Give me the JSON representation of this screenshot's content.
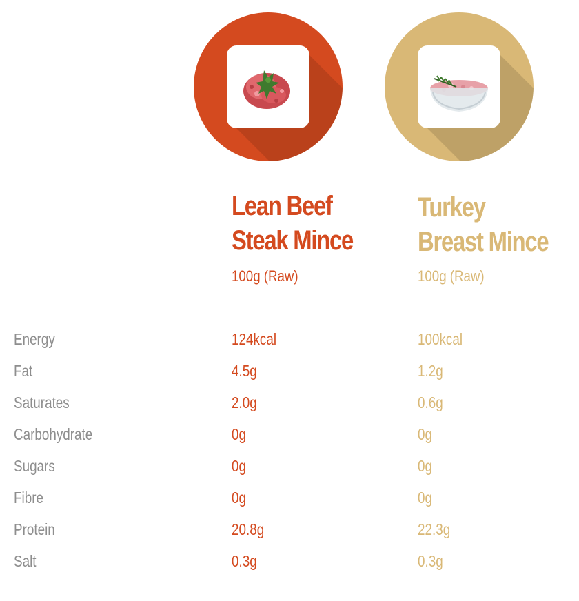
{
  "colors": {
    "beef": "#d44a1f",
    "turkey": "#d9b876",
    "label": "#8e8e8e"
  },
  "products": [
    {
      "name_line1": "Lean Beef",
      "name_line2": "Steak Mince",
      "portion": "100g (Raw)",
      "icon": "beef-mince-icon"
    },
    {
      "name_line1": "Turkey",
      "name_line2": "Breast Mince",
      "portion": "100g (Raw)",
      "icon": "turkey-mince-bowl-icon"
    }
  ],
  "nutrients": [
    {
      "label": "Energy",
      "beef": "124kcal",
      "turkey": "100kcal"
    },
    {
      "label": "Fat",
      "beef": "4.5g",
      "turkey": "1.2g"
    },
    {
      "label": "Saturates",
      "beef": "2.0g",
      "turkey": "0.6g"
    },
    {
      "label": "Carbohydrate",
      "beef": "0g",
      "turkey": "0g"
    },
    {
      "label": "Sugars",
      "beef": "0g",
      "turkey": "0g"
    },
    {
      "label": "Fibre",
      "beef": "0g",
      "turkey": "0g"
    },
    {
      "label": "Protein",
      "beef": "20.8g",
      "turkey": "22.3g"
    },
    {
      "label": "Salt",
      "beef": "0.3g",
      "turkey": "0.3g"
    }
  ]
}
